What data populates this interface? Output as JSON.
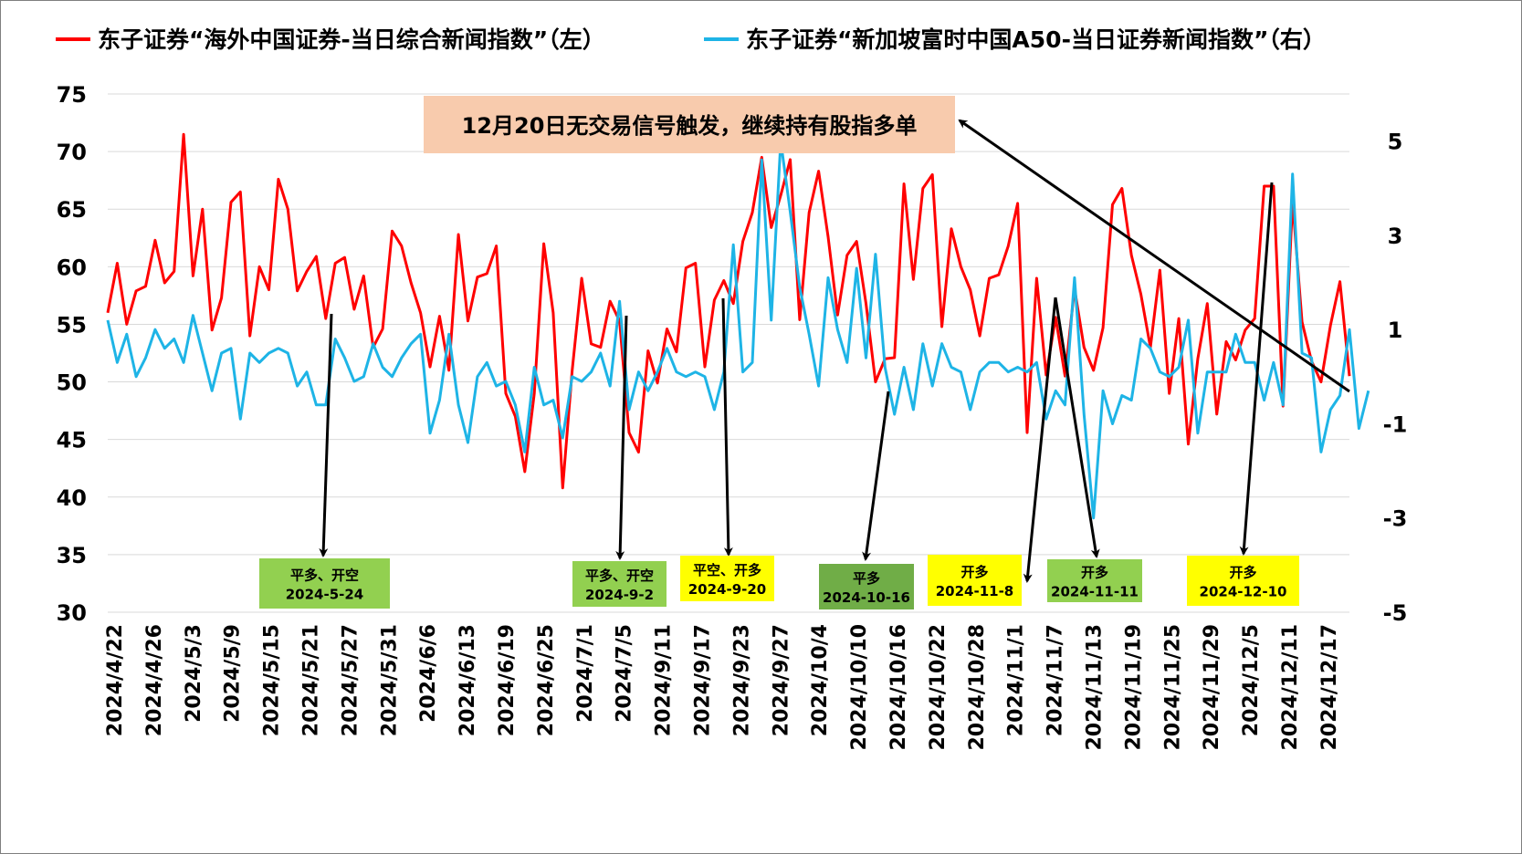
{
  "chart_data": {
    "type": "line",
    "legend_position": "top",
    "grid": "horizontal",
    "y_left": {
      "min": 30,
      "max": 75,
      "ticks": [
        "75",
        "70",
        "65",
        "60",
        "55",
        "50",
        "45",
        "40",
        "35",
        "30"
      ]
    },
    "y_right": {
      "min": -5,
      "max": 6,
      "ticks": [
        "5",
        "3",
        "1",
        "-1",
        "-3",
        "-5"
      ]
    },
    "x_labels": [
      "2024/4/22",
      "2024/4/26",
      "2024/5/3",
      "2024/5/9",
      "2024/5/15",
      "2024/5/21",
      "2024/5/27",
      "2024/5/31",
      "2024/6/6",
      "2024/6/13",
      "2024/6/19",
      "2024/6/25",
      "2024/7/1",
      "2024/7/5",
      "2024/9/11",
      "2024/9/17",
      "2024/9/23",
      "2024/9/27",
      "2024/10/4",
      "2024/10/10",
      "2024/10/16",
      "2024/10/22",
      "2024/10/28",
      "2024/11/1",
      "2024/11/7",
      "2024/11/13",
      "2024/11/19",
      "2024/11/25",
      "2024/11/29",
      "2024/12/5",
      "2024/12/11",
      "2024/12/17"
    ],
    "series": [
      {
        "name": "东子证券“海外中国证券-当日综合新闻指数”（左）",
        "color": "#FF0000",
        "axis": "left",
        "values": [
          56,
          60.3,
          55,
          57.9,
          58.3,
          62.3,
          58.6,
          59.6,
          71.5,
          59.2,
          65,
          54.5,
          57.3,
          65.6,
          66.5,
          54,
          60,
          58,
          67.6,
          65,
          57.9,
          59.6,
          60.9,
          55.5,
          60.3,
          60.8,
          56.3,
          59.2,
          53,
          54.6,
          63.1,
          61.8,
          58.6,
          56,
          51.3,
          55.7,
          51,
          62.8,
          55.3,
          59.1,
          59.4,
          61.8,
          49,
          47,
          42.2,
          49,
          62,
          56,
          40.8,
          51,
          59,
          53.3,
          53,
          57,
          55.3,
          45.6,
          43.9,
          52.7,
          49.9,
          54.6,
          52.6,
          59.9,
          60.3,
          51.3,
          57.1,
          58.8,
          56.8,
          62.2,
          64.7,
          69.5,
          63.4,
          66.2,
          69.3,
          55.4,
          64.7,
          68.3,
          62.6,
          55.8,
          61,
          62.2,
          56.8,
          50,
          52,
          52.1,
          67.2,
          58.9,
          66.8,
          68,
          54.8,
          63.3,
          60,
          58,
          54,
          59,
          59.3,
          61.8,
          65.5,
          45.6,
          59,
          50.6,
          55.6,
          50.5,
          58.1,
          53,
          51,
          54.7,
          65.4,
          66.8,
          61,
          57.6,
          53,
          59.7,
          49,
          55.5,
          44.6,
          52,
          56.8,
          47.2,
          53.5,
          51.9,
          54.5,
          55.5,
          67,
          67,
          47.9,
          65.7,
          55.2,
          51.8,
          50,
          54.9,
          58.7,
          50.5
        ]
      },
      {
        "name": "东子证券“新加坡富时中国A50-当日证券新闻指数”（右）",
        "color": "#1EB4E6",
        "axis": "right",
        "values": [
          1.2,
          0.3,
          0.9,
          0,
          0.4,
          1,
          0.6,
          0.8,
          0.3,
          1.3,
          0.5,
          -0.3,
          0.5,
          0.6,
          -0.9,
          0.5,
          0.3,
          0.5,
          0.6,
          0.5,
          -0.2,
          0.1,
          -0.6,
          -0.6,
          0.8,
          0.4,
          -0.1,
          0,
          0.7,
          0.2,
          0,
          0.4,
          0.7,
          0.9,
          -1.2,
          -0.5,
          0.9,
          -0.6,
          -1.4,
          0,
          0.3,
          -0.2,
          -0.1,
          -0.6,
          -1.6,
          0.2,
          -0.6,
          -0.5,
          -1.3,
          0,
          -0.1,
          0.1,
          0.5,
          -0.2,
          1.6,
          -0.7,
          0.1,
          -0.3,
          0.1,
          0.6,
          0.1,
          0,
          0.1,
          0,
          -0.7,
          0.1,
          2.8,
          0.1,
          0.3,
          4.6,
          1.2,
          5,
          3.5,
          1.9,
          0.9,
          -0.2,
          2.1,
          1,
          0.3,
          2.3,
          0.4,
          2.6,
          0.2,
          -0.8,
          0.2,
          -0.7,
          0.7,
          -0.2,
          0.7,
          0.2,
          0.1,
          -0.7,
          0.1,
          0.3,
          0.3,
          0.1,
          0.2,
          0.1,
          0.3,
          -0.9,
          -0.3,
          -0.6,
          2.1,
          -0.8,
          -3,
          -0.3,
          -1,
          -0.4,
          -0.5,
          0.8,
          0.6,
          0.1,
          0,
          0.2,
          1.2,
          -1.2,
          0.1,
          0.1,
          0.1,
          0.9,
          0.3,
          0.3,
          -0.5,
          0.3,
          -0.6,
          4.3,
          0.5,
          0.4,
          -1.6,
          -0.7,
          -0.4,
          1,
          -1.1,
          -0.3
        ]
      }
    ],
    "signals": [
      {
        "action": "平多、开空",
        "date": "2024-5-24",
        "color": "#92D050"
      },
      {
        "action": "平多、开空",
        "date": "2024-9-2",
        "color": "#92D050"
      },
      {
        "action": "平空、开多",
        "date": "2024-9-20",
        "color": "#FFFF00"
      },
      {
        "action": "平多",
        "date": "2024-10-16",
        "color": "#70AD47"
      },
      {
        "action": "开多",
        "date": "2024-11-8",
        "color": "#FFFF00"
      },
      {
        "action": "开多",
        "date": "2024-11-11",
        "color": "#92D050"
      },
      {
        "action": "开多",
        "date": "2024-12-10",
        "color": "#FFFF00"
      }
    ],
    "annotation": {
      "text": "12月20日无交易信号触发，继续持有股指多单",
      "color": "#F8CBAD"
    }
  }
}
